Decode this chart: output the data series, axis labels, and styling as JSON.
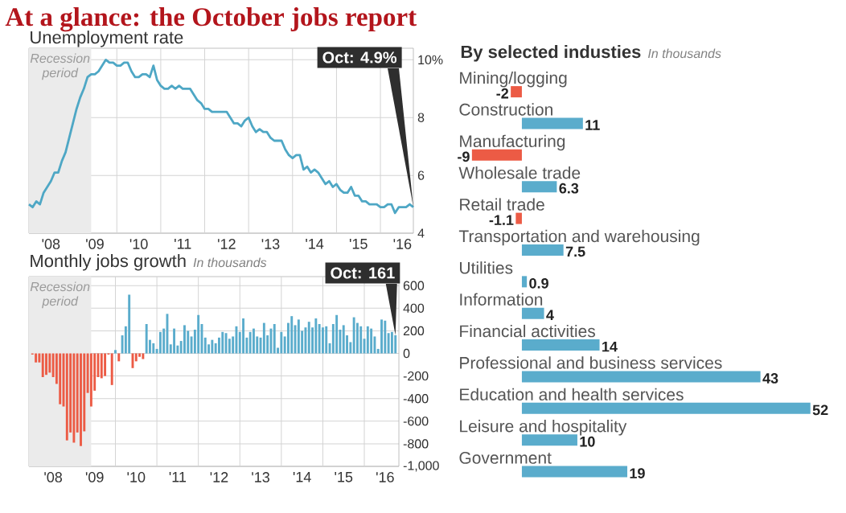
{
  "chart_data": [
    {
      "type": "line",
      "title": "At a glance: the October jobs report",
      "subtitle": "Unemployment rate",
      "color": "#4ea7c5",
      "x": [
        "2008-01",
        "2008-02",
        "2008-03",
        "2008-04",
        "2008-05",
        "2008-06",
        "2008-07",
        "2008-08",
        "2008-09",
        "2008-10",
        "2008-11",
        "2008-12",
        "2009-01",
        "2009-02",
        "2009-03",
        "2009-04",
        "2009-05",
        "2009-06",
        "2009-07",
        "2009-08",
        "2009-09",
        "2009-10",
        "2009-11",
        "2009-12",
        "2010-01",
        "2010-02",
        "2010-03",
        "2010-04",
        "2010-05",
        "2010-06",
        "2010-07",
        "2010-08",
        "2010-09",
        "2010-10",
        "2010-11",
        "2010-12",
        "2011-01",
        "2011-02",
        "2011-03",
        "2011-04",
        "2011-05",
        "2011-06",
        "2011-07",
        "2011-08",
        "2011-09",
        "2011-10",
        "2011-11",
        "2011-12",
        "2012-01",
        "2012-02",
        "2012-03",
        "2012-04",
        "2012-05",
        "2012-06",
        "2012-07",
        "2012-08",
        "2012-09",
        "2012-10",
        "2012-11",
        "2012-12",
        "2013-01",
        "2013-02",
        "2013-03",
        "2013-04",
        "2013-05",
        "2013-06",
        "2013-07",
        "2013-08",
        "2013-09",
        "2013-10",
        "2013-11",
        "2013-12",
        "2014-01",
        "2014-02",
        "2014-03",
        "2014-04",
        "2014-05",
        "2014-06",
        "2014-07",
        "2014-08",
        "2014-09",
        "2014-10",
        "2014-11",
        "2014-12",
        "2015-01",
        "2015-02",
        "2015-03",
        "2015-04",
        "2015-05",
        "2015-06",
        "2015-07",
        "2015-08",
        "2015-09",
        "2015-10",
        "2015-11",
        "2015-12",
        "2016-01",
        "2016-02",
        "2016-03",
        "2016-04",
        "2016-05",
        "2016-06",
        "2016-07",
        "2016-08",
        "2016-09",
        "2016-10"
      ],
      "values": [
        5.0,
        4.9,
        5.1,
        5.0,
        5.4,
        5.6,
        5.8,
        6.1,
        6.1,
        6.5,
        6.8,
        7.3,
        7.8,
        8.3,
        8.7,
        9.0,
        9.4,
        9.5,
        9.5,
        9.6,
        9.8,
        10.0,
        9.9,
        9.9,
        9.8,
        9.8,
        9.9,
        9.9,
        9.6,
        9.4,
        9.4,
        9.5,
        9.5,
        9.4,
        9.8,
        9.3,
        9.1,
        9.0,
        9.0,
        9.1,
        9.0,
        9.1,
        9.0,
        9.0,
        9.0,
        8.8,
        8.6,
        8.5,
        8.3,
        8.3,
        8.2,
        8.2,
        8.2,
        8.2,
        8.2,
        8.0,
        7.8,
        7.8,
        7.7,
        7.9,
        8.0,
        7.7,
        7.5,
        7.6,
        7.5,
        7.5,
        7.3,
        7.2,
        7.2,
        7.2,
        6.9,
        6.7,
        6.6,
        6.7,
        6.7,
        6.2,
        6.3,
        6.1,
        6.2,
        6.1,
        5.9,
        5.7,
        5.8,
        5.6,
        5.7,
        5.5,
        5.4,
        5.4,
        5.6,
        5.3,
        5.3,
        5.1,
        5.1,
        5.0,
        5.0,
        5.0,
        4.9,
        4.9,
        5.0,
        5.0,
        4.7,
        4.9,
        4.9,
        4.9,
        5.0,
        4.9
      ],
      "xlim": [
        "2008-01",
        "2016-10"
      ],
      "ylim": [
        4,
        10.4
      ],
      "xticks": [
        {
          "value": "2008-07",
          "label": "'08"
        },
        {
          "value": "2009-07",
          "label": "'09"
        },
        {
          "value": "2010-07",
          "label": "'10"
        },
        {
          "value": "2011-07",
          "label": "'11"
        },
        {
          "value": "2012-07",
          "label": "'12"
        },
        {
          "value": "2013-07",
          "label": "'13"
        },
        {
          "value": "2014-07",
          "label": "'14"
        },
        {
          "value": "2015-07",
          "label": "'15"
        },
        {
          "value": "2016-07",
          "label": "'16"
        },
        {
          "value": "2009-01",
          "label": null
        },
        {
          "value": "2010-01",
          "label": null
        },
        {
          "value": "2011-01",
          "label": null
        },
        {
          "value": "2012-01",
          "label": null
        },
        {
          "value": "2013-01",
          "label": null
        },
        {
          "value": "2014-01",
          "label": null
        },
        {
          "value": "2015-01",
          "label": null
        },
        {
          "value": "2016-01",
          "label": null
        }
      ],
      "yticks": [
        4,
        6,
        8,
        {
          "value": 10,
          "label": "10%"
        }
      ],
      "grid": true,
      "bands": [
        {
          "axis": "x",
          "from": "2008-01",
          "to": "2009-06",
          "label": "Recession period",
          "color": "#ebebeb"
        }
      ],
      "annotations": [
        {
          "text": "Oct: 4.9%",
          "x": "2016-10",
          "y": 4.9
        }
      ]
    },
    {
      "type": "bar",
      "title": "Monthly jobs growth",
      "subtitle": "In thousands",
      "x": [
        "2008-01",
        "2008-02",
        "2008-03",
        "2008-04",
        "2008-05",
        "2008-06",
        "2008-07",
        "2008-08",
        "2008-09",
        "2008-10",
        "2008-11",
        "2008-12",
        "2009-01",
        "2009-02",
        "2009-03",
        "2009-04",
        "2009-05",
        "2009-06",
        "2009-07",
        "2009-08",
        "2009-09",
        "2009-10",
        "2009-11",
        "2009-12",
        "2010-01",
        "2010-02",
        "2010-03",
        "2010-04",
        "2010-05",
        "2010-06",
        "2010-07",
        "2010-08",
        "2010-09",
        "2010-10",
        "2010-11",
        "2010-12",
        "2011-01",
        "2011-02",
        "2011-03",
        "2011-04",
        "2011-05",
        "2011-06",
        "2011-07",
        "2011-08",
        "2011-09",
        "2011-10",
        "2011-11",
        "2011-12",
        "2012-01",
        "2012-02",
        "2012-03",
        "2012-04",
        "2012-05",
        "2012-06",
        "2012-07",
        "2012-08",
        "2012-09",
        "2012-10",
        "2012-11",
        "2012-12",
        "2013-01",
        "2013-02",
        "2013-03",
        "2013-04",
        "2013-05",
        "2013-06",
        "2013-07",
        "2013-08",
        "2013-09",
        "2013-10",
        "2013-11",
        "2013-12",
        "2014-01",
        "2014-02",
        "2014-03",
        "2014-04",
        "2014-05",
        "2014-06",
        "2014-07",
        "2014-08",
        "2014-09",
        "2014-10",
        "2014-11",
        "2014-12",
        "2015-01",
        "2015-02",
        "2015-03",
        "2015-04",
        "2015-05",
        "2015-06",
        "2015-07",
        "2015-08",
        "2015-09",
        "2015-10",
        "2015-11",
        "2015-12",
        "2016-01",
        "2016-02",
        "2016-03",
        "2016-04",
        "2016-05",
        "2016-06",
        "2016-07",
        "2016-08",
        "2016-09",
        "2016-10"
      ],
      "values": [
        -10,
        -80,
        -80,
        -210,
        -190,
        -170,
        -210,
        -270,
        -450,
        -470,
        -770,
        -700,
        -790,
        -700,
        -820,
        -690,
        -350,
        -470,
        -330,
        -210,
        -220,
        -200,
        -10,
        -280,
        30,
        -70,
        160,
        240,
        520,
        -130,
        -70,
        -30,
        -50,
        260,
        120,
        90,
        40,
        190,
        220,
        350,
        80,
        220,
        70,
        110,
        250,
        200,
        150,
        210,
        340,
        260,
        140,
        80,
        120,
        90,
        140,
        190,
        180,
        130,
        150,
        240,
        190,
        310,
        140,
        190,
        220,
        150,
        140,
        270,
        160,
        220,
        260,
        50,
        190,
        150,
        270,
        330,
        250,
        300,
        200,
        230,
        280,
        230,
        310,
        260,
        230,
        240,
        90,
        260,
        340,
        210,
        250,
        160,
        100,
        320,
        270,
        240,
        130,
        240,
        220,
        150,
        40,
        300,
        290,
        180,
        190,
        161
      ],
      "colors": [
        "#ec5b45",
        "#ec5b45",
        "#ec5b45",
        "#ec5b45",
        "#ec5b45",
        "#ec5b45",
        "#ec5b45",
        "#ec5b45",
        "#ec5b45",
        "#ec5b45",
        "#ec5b45",
        "#ec5b45",
        "#ec5b45",
        "#ec5b45",
        "#ec5b45",
        "#ec5b45",
        "#ec5b45",
        "#ec5b45",
        "#ec5b45",
        "#ec5b45",
        "#ec5b45",
        "#ec5b45",
        "#ec5b45",
        "#ec5b45",
        "#5aaccc",
        "#ec5b45",
        "#5aaccc",
        "#5aaccc",
        "#5aaccc",
        "#ec5b45",
        "#ec5b45",
        "#ec5b45",
        "#ec5b45",
        "#5aaccc",
        "#5aaccc",
        "#5aaccc",
        "#5aaccc",
        "#5aaccc",
        "#5aaccc",
        "#5aaccc",
        "#5aaccc",
        "#5aaccc",
        "#5aaccc",
        "#5aaccc",
        "#5aaccc",
        "#5aaccc",
        "#5aaccc",
        "#5aaccc",
        "#5aaccc",
        "#5aaccc",
        "#5aaccc",
        "#5aaccc",
        "#5aaccc",
        "#5aaccc",
        "#5aaccc",
        "#5aaccc",
        "#5aaccc",
        "#5aaccc",
        "#5aaccc",
        "#5aaccc",
        "#5aaccc",
        "#5aaccc",
        "#5aaccc",
        "#5aaccc",
        "#5aaccc",
        "#5aaccc",
        "#5aaccc",
        "#5aaccc",
        "#5aaccc",
        "#5aaccc",
        "#5aaccc",
        "#5aaccc",
        "#5aaccc",
        "#5aaccc",
        "#5aaccc",
        "#5aaccc",
        "#5aaccc",
        "#5aaccc",
        "#5aaccc",
        "#5aaccc",
        "#5aaccc",
        "#5aaccc",
        "#5aaccc",
        "#5aaccc",
        "#5aaccc",
        "#5aaccc",
        "#5aaccc",
        "#5aaccc",
        "#5aaccc",
        "#5aaccc",
        "#5aaccc",
        "#5aaccc",
        "#5aaccc",
        "#5aaccc",
        "#5aaccc",
        "#5aaccc",
        "#5aaccc",
        "#5aaccc",
        "#5aaccc",
        "#5aaccc",
        "#5aaccc",
        "#5aaccc",
        "#5aaccc",
        "#5aaccc",
        "#5aaccc",
        "#5aaccc"
      ],
      "xlim": [
        "2007-12",
        "2016-11"
      ],
      "ylim": [
        -1000,
        680
      ],
      "xticks": [
        {
          "value": "2008-07",
          "label": "'08"
        },
        {
          "value": "2009-07",
          "label": "'09"
        },
        {
          "value": "2010-07",
          "label": "'10"
        },
        {
          "value": "2011-07",
          "label": "'11"
        },
        {
          "value": "2012-07",
          "label": "'12"
        },
        {
          "value": "2013-07",
          "label": "'13"
        },
        {
          "value": "2014-07",
          "label": "'14"
        },
        {
          "value": "2015-07",
          "label": "'15"
        },
        {
          "value": "2016-07",
          "label": "'16"
        },
        {
          "value": "2009-01",
          "label": null
        },
        {
          "value": "2010-01",
          "label": null
        },
        {
          "value": "2011-01",
          "label": null
        },
        {
          "value": "2012-01",
          "label": null
        },
        {
          "value": "2013-01",
          "label": null
        },
        {
          "value": "2014-01",
          "label": null
        },
        {
          "value": "2015-01",
          "label": null
        },
        {
          "value": "2016-01",
          "label": null
        }
      ],
      "yticks": [
        {
          "value": -1000,
          "label": "-1,000"
        },
        -800,
        -600,
        -400,
        -200,
        0,
        200,
        400,
        600
      ],
      "grid": true,
      "bands": [
        {
          "axis": "x",
          "from": "2007-12",
          "to": "2009-06",
          "label": "Recession period",
          "color": "#ebebeb"
        }
      ],
      "annotations": [
        {
          "text": "Oct: 161",
          "x": "2016-10",
          "y": 161
        }
      ]
    },
    {
      "type": "bar",
      "orientation": "horizontal",
      "title": "By selected industies",
      "subtitle": "In thousands",
      "categories": [
        "Mining/logging",
        "Construction",
        "Manufacturing",
        "Wholesale trade",
        "Retail trade",
        "Transportation and warehousing",
        "Utilities",
        "Information",
        "Financial activities",
        "Professional and business services",
        "Education and health services",
        "Leisure and hospitality",
        "Government"
      ],
      "values": [
        -2,
        11,
        -9,
        6.3,
        -1.1,
        7.5,
        0.9,
        4,
        14,
        43,
        52,
        10,
        19
      ],
      "colors": [
        "#ec5b45",
        "#5aaccc",
        "#ec5b45",
        "#5aaccc",
        "#ec5b45",
        "#5aaccc",
        "#5aaccc",
        "#5aaccc",
        "#5aaccc",
        "#5aaccc",
        "#5aaccc",
        "#5aaccc",
        "#5aaccc"
      ],
      "data_labels": true
    }
  ]
}
